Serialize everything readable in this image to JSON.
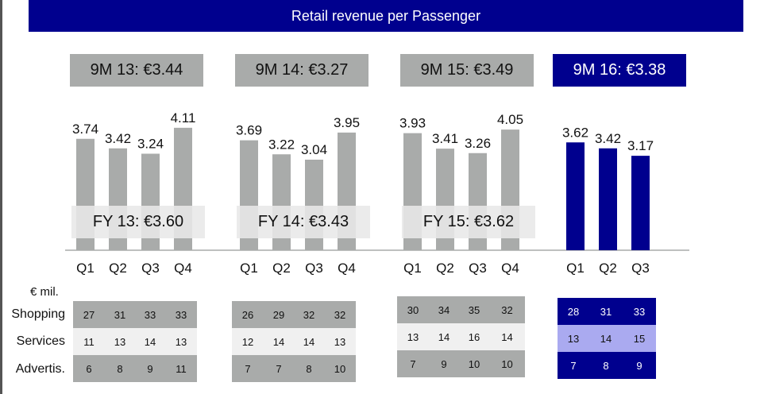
{
  "title": "Retail revenue per Passenger",
  "nine_month": [
    "9M 13: €3.44",
    "9M 14: €3.27",
    "9M 15: €3.49",
    "9M 16: €3.38"
  ],
  "full_year": [
    "FY 13: €3.60",
    "FY 14: €3.43",
    "FY 15: €3.62"
  ],
  "unit_label": "€ mil.",
  "row_labels": [
    "Shopping",
    "Services",
    "Advertis."
  ],
  "colors": {
    "accent": "#00008e",
    "bar_grey": "#a9abaa",
    "services_light_blue": "#aaaaf0"
  },
  "chart_data": {
    "type": "bar",
    "title": "Retail revenue per Passenger",
    "ylim": [
      0,
      4.5
    ],
    "groups": [
      {
        "categories": [
          "Q1",
          "Q2",
          "Q3",
          "Q4"
        ],
        "values": [
          3.74,
          3.42,
          3.24,
          4.11
        ],
        "labels": [
          "3.74",
          "3.42",
          "3.24",
          "4.11"
        ]
      },
      {
        "categories": [
          "Q1",
          "Q2",
          "Q3",
          "Q4"
        ],
        "values": [
          3.69,
          3.22,
          3.04,
          3.95
        ],
        "labels": [
          "3.69",
          "3.22",
          "3.04",
          "3.95"
        ]
      },
      {
        "categories": [
          "Q1",
          "Q2",
          "Q3",
          "Q4"
        ],
        "values": [
          3.93,
          3.41,
          3.26,
          4.05
        ],
        "labels": [
          "3.93",
          "3.41",
          "3.26",
          "4.05"
        ]
      },
      {
        "categories": [
          "Q1",
          "Q2",
          "Q3"
        ],
        "values": [
          3.62,
          3.42,
          3.17
        ],
        "labels": [
          "3.62",
          "3.42",
          "3.17"
        ]
      }
    ]
  },
  "tables": [
    {
      "shopping": [
        "27",
        "31",
        "33",
        "33"
      ],
      "services": [
        "11",
        "13",
        "14",
        "13"
      ],
      "advertis": [
        "6",
        "8",
        "9",
        "11"
      ]
    },
    {
      "shopping": [
        "26",
        "29",
        "32",
        "32"
      ],
      "services": [
        "12",
        "14",
        "14",
        "13"
      ],
      "advertis": [
        "7",
        "7",
        "8",
        "10"
      ]
    },
    {
      "shopping": [
        "30",
        "34",
        "35",
        "32"
      ],
      "services": [
        "13",
        "14",
        "16",
        "14"
      ],
      "advertis": [
        "7",
        "9",
        "10",
        "10"
      ]
    },
    {
      "shopping": [
        "28",
        "31",
        "33"
      ],
      "services": [
        "13",
        "14",
        "15"
      ],
      "advertis": [
        "7",
        "8",
        "9"
      ]
    }
  ]
}
